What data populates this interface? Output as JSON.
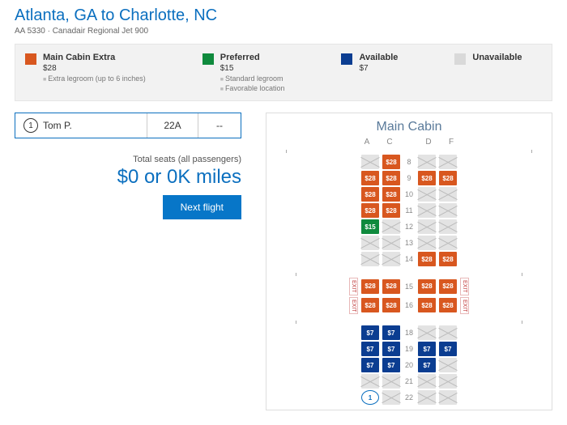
{
  "route": "Atlanta, GA to Charlotte, NC",
  "flightSub": "AA 5330 · Canadair Regional Jet 900",
  "legend": [
    {
      "k": "mce",
      "name": "Main Cabin Extra",
      "price": "$28",
      "notes": [
        "Extra legroom (up to 6 inches)"
      ],
      "swatch": "orange"
    },
    {
      "k": "pref",
      "name": "Preferred",
      "price": "$15",
      "notes": [
        "Standard legroom",
        "Favorable location"
      ],
      "swatch": "green"
    },
    {
      "k": "avail",
      "name": "Available",
      "price": "$7",
      "notes": [],
      "swatch": "navy"
    },
    {
      "k": "un",
      "name": "Unavailable",
      "price": "",
      "notes": [],
      "swatch": "gray"
    }
  ],
  "passenger": {
    "num": "1",
    "name": "Tom P.",
    "seat": "22A",
    "extra": "--"
  },
  "summary": {
    "label": "Total seats (all passengers)",
    "value": "$0 or 0K miles",
    "button": "Next flight"
  },
  "cabinTitle": "Main Cabin",
  "cols": [
    "A",
    "C",
    "",
    "D",
    "F"
  ],
  "prices": {
    "mce": "$28",
    "pref": "$15",
    "avail": "$7"
  },
  "rows": [
    {
      "n": "8",
      "s": [
        "un",
        "mce",
        "",
        "un",
        "un"
      ]
    },
    {
      "n": "9",
      "s": [
        "mce",
        "mce",
        "",
        "mce",
        "mce"
      ]
    },
    {
      "n": "10",
      "s": [
        "mce",
        "mce",
        "",
        "un",
        "un"
      ]
    },
    {
      "n": "11",
      "s": [
        "mce",
        "mce",
        "",
        "un",
        "un"
      ]
    },
    {
      "n": "12",
      "s": [
        "pref",
        "un",
        "",
        "un",
        "un"
      ]
    },
    {
      "n": "13",
      "s": [
        "un",
        "un",
        "",
        "un",
        "un"
      ]
    },
    {
      "n": "14",
      "s": [
        "un",
        "un",
        "",
        "mce",
        "mce"
      ]
    },
    {
      "gap": true
    },
    {
      "n": "15",
      "s": [
        "mce",
        "mce",
        "",
        "mce",
        "mce"
      ],
      "exit": true
    },
    {
      "n": "16",
      "s": [
        "mce",
        "mce",
        "",
        "mce",
        "mce"
      ],
      "exit": true
    },
    {
      "gap": true
    },
    {
      "n": "18",
      "s": [
        "avail",
        "avail",
        "",
        "un",
        "un"
      ]
    },
    {
      "n": "19",
      "s": [
        "avail",
        "avail",
        "",
        "avail",
        "avail"
      ]
    },
    {
      "n": "20",
      "s": [
        "avail",
        "avail",
        "",
        "avail",
        "un"
      ]
    },
    {
      "n": "21",
      "s": [
        "un",
        "un",
        "",
        "un",
        "un"
      ]
    },
    {
      "n": "22",
      "s": [
        "sel",
        "un",
        "",
        "un",
        "un"
      ]
    }
  ]
}
